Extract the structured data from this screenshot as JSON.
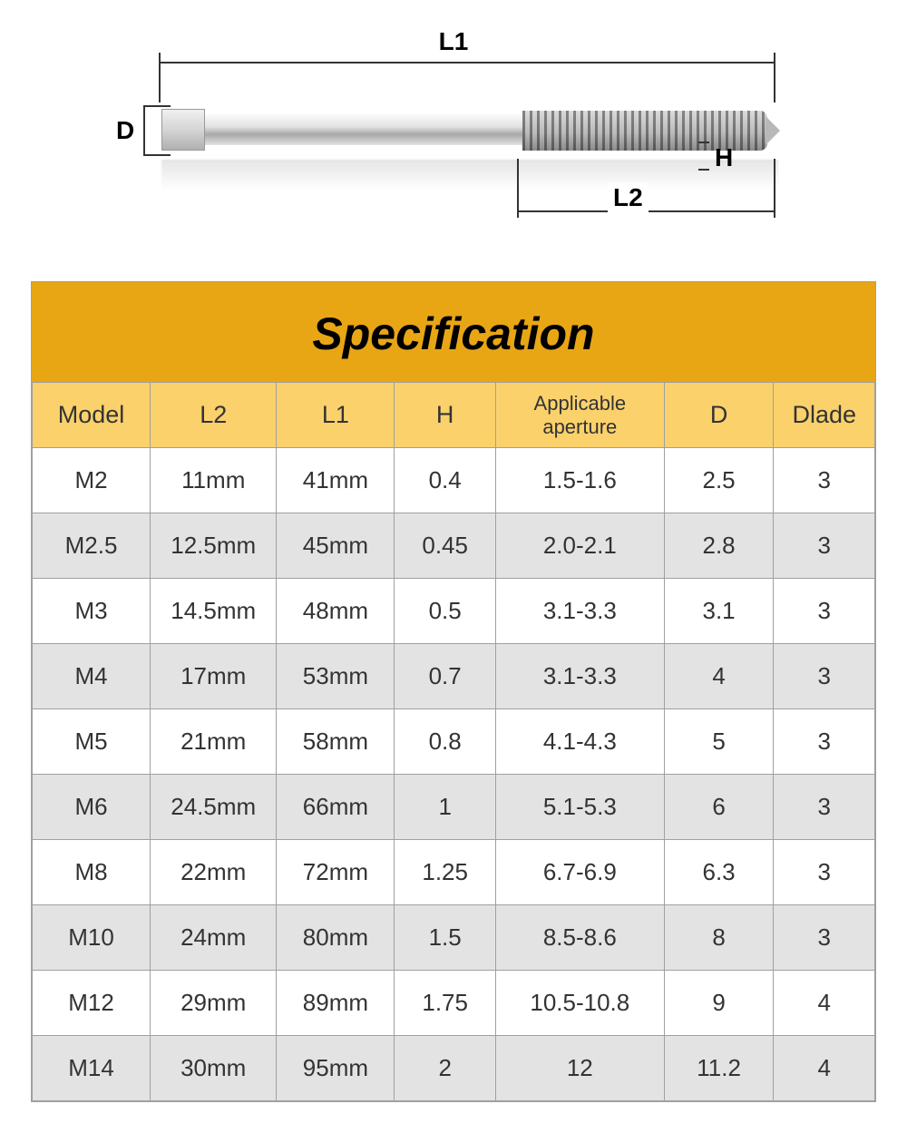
{
  "diagram": {
    "labels": {
      "L1": "L1",
      "L2": "L2",
      "D": "D",
      "H": "H"
    }
  },
  "table": {
    "title": "Specification",
    "title_bg": "#e8a615",
    "header_bg": "#fbd16c",
    "row_alt_bg": "#e3e3e3",
    "row_bg": "#ffffff",
    "border_color": "#a0a0a0",
    "title_color": "#000000",
    "text_color": "#333333",
    "title_fontsize": 50,
    "cell_fontsize": 26,
    "columns": [
      "Model",
      "L2",
      "L1",
      "H",
      "Applicable aperture",
      "D",
      "Dlade"
    ],
    "rows": [
      [
        "M2",
        "11mm",
        "41mm",
        "0.4",
        "1.5-1.6",
        "2.5",
        "3"
      ],
      [
        "M2.5",
        "12.5mm",
        "45mm",
        "0.45",
        "2.0-2.1",
        "2.8",
        "3"
      ],
      [
        "M3",
        "14.5mm",
        "48mm",
        "0.5",
        "3.1-3.3",
        "3.1",
        "3"
      ],
      [
        "M4",
        "17mm",
        "53mm",
        "0.7",
        "3.1-3.3",
        "4",
        "3"
      ],
      [
        "M5",
        "21mm",
        "58mm",
        "0.8",
        "4.1-4.3",
        "5",
        "3"
      ],
      [
        "M6",
        "24.5mm",
        "66mm",
        "1",
        "5.1-5.3",
        "6",
        "3"
      ],
      [
        "M8",
        "22mm",
        "72mm",
        "1.25",
        "6.7-6.9",
        "6.3",
        "3"
      ],
      [
        "M10",
        "24mm",
        "80mm",
        "1.5",
        "8.5-8.6",
        "8",
        "3"
      ],
      [
        "M12",
        "29mm",
        "89mm",
        "1.75",
        "10.5-10.8",
        "9",
        "4"
      ],
      [
        "M14",
        "30mm",
        "95mm",
        "2",
        "12",
        "11.2",
        "4"
      ]
    ]
  }
}
